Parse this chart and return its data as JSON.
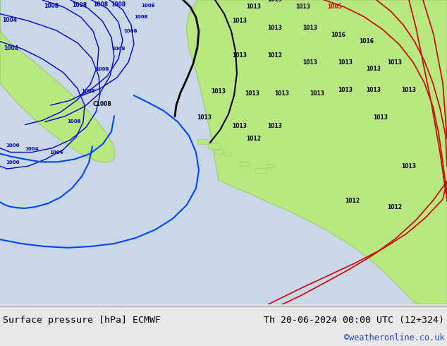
{
  "title_left": "Surface pressure [hPa] ECMWF",
  "title_right": "Th 20-06-2024 00:00 UTC (12+324)",
  "watermark": "©weatheronline.co.uk",
  "bg_color": "#e8e8e8",
  "map_bg_color": "#d8d8d8",
  "land_color": "#c8f0a0",
  "sea_color": "#e0e8f8",
  "footer_bg": "#e8e8e8",
  "title_color": "#000000",
  "watermark_color": "#4444cc",
  "figsize": [
    6.34,
    4.9
  ],
  "dpi": 100
}
